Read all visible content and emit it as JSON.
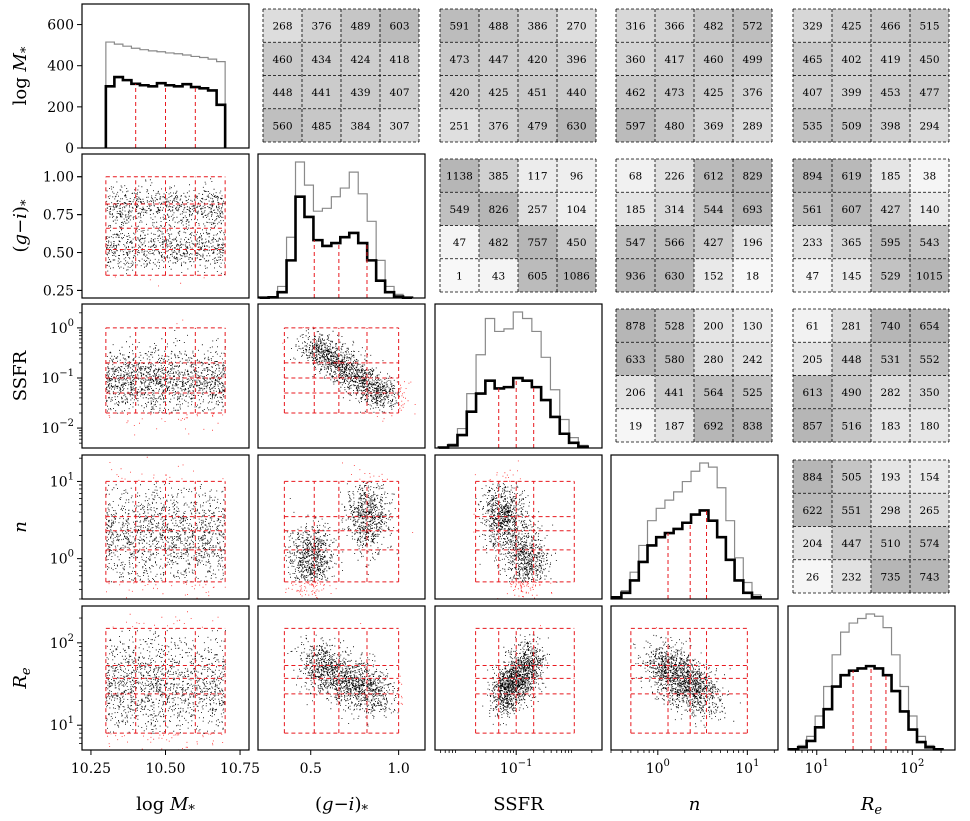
{
  "chart_data": {
    "type": "corner-plot",
    "variables": [
      {
        "label": "log M*",
        "scale": "linear",
        "lim": [
          10.22,
          10.78
        ],
        "ticks": [
          10.25,
          10.5,
          10.75
        ],
        "tick_labels": [
          "10.25",
          "10.50",
          "10.75"
        ],
        "bins": [
          10.3,
          10.4,
          10.5,
          10.6,
          10.7
        ]
      },
      {
        "label": "(g−i)*",
        "scale": "linear",
        "lim": [
          0.2,
          1.15
        ],
        "ticks": [
          0.5,
          1.0
        ],
        "tick_labels": [
          "0.5",
          "1.0"
        ],
        "bins": [
          0.35,
          0.52,
          0.66,
          0.82,
          1.0
        ]
      },
      {
        "label": "SSFR",
        "scale": "log",
        "lim": [
          0.004,
          3.0
        ],
        "ticks": [
          0.1
        ],
        "tick_labels": [
          "10−1"
        ],
        "bins": [
          0.02,
          0.05,
          0.1,
          0.2,
          1.0
        ]
      },
      {
        "label": "n",
        "scale": "log",
        "lim": [
          0.3,
          22
        ],
        "ticks": [
          1,
          10
        ],
        "tick_labels": [
          "100",
          "101"
        ],
        "bins": [
          0.5,
          1.3,
          2.3,
          3.5,
          10.0
        ]
      },
      {
        "label": "Re",
        "scale": "log",
        "lim": [
          5,
          280
        ],
        "ticks": [
          10,
          100
        ],
        "tick_labels": [
          "101",
          "102"
        ],
        "bins": [
          8,
          24,
          37,
          53,
          150
        ]
      }
    ],
    "row_axes": [
      {
        "ylabel": "log M*",
        "scale": "linear",
        "ylim": [
          0,
          700
        ],
        "ticks": [
          0,
          200,
          400,
          600
        ],
        "tick_labels": [
          "0",
          "200",
          "400",
          "600"
        ]
      },
      {
        "ylabel": "(g−i)*",
        "scale": "linear",
        "ylim": [
          0.2,
          1.15
        ],
        "ticks": [
          0.25,
          0.5,
          0.75,
          1.0
        ],
        "tick_labels": [
          "0.25",
          "0.50",
          "0.75",
          "1.00"
        ]
      },
      {
        "ylabel": "SSFR",
        "scale": "log",
        "ylim": [
          0.004,
          3.0
        ],
        "ticks": [
          0.01,
          0.1,
          1
        ],
        "tick_labels": [
          "10−2",
          "10−1",
          "100"
        ]
      },
      {
        "ylabel": "n",
        "scale": "log",
        "ylim": [
          0.3,
          22
        ],
        "ticks": [
          1,
          10
        ],
        "tick_labels": [
          "100",
          "101"
        ]
      },
      {
        "ylabel": "Re",
        "scale": "log",
        "ylim": [
          5,
          280
        ],
        "ticks": [
          10,
          100
        ],
        "tick_labels": [
          "101",
          "102"
        ]
      }
    ],
    "histograms": [
      {
        "variable": "log M*",
        "all": [
          515,
          505,
          495,
          485,
          478,
          472,
          468,
          462,
          458,
          452,
          445,
          440,
          432,
          420
        ],
        "selected": [
          300,
          345,
          330,
          312,
          305,
          300,
          315,
          305,
          300,
          310,
          296,
          290,
          280,
          210
        ]
      },
      {
        "variable": "(g−i)*",
        "all": [
          3,
          10,
          80,
          420,
          940,
          780,
          600,
          620,
          700,
          760,
          870,
          720,
          530,
          260,
          80,
          25,
          5
        ],
        "selected": [
          2,
          5,
          40,
          260,
          700,
          560,
          400,
          360,
          380,
          420,
          450,
          380,
          260,
          120,
          40,
          10,
          2
        ]
      },
      {
        "variable": "SSFR",
        "all": [
          5,
          30,
          150,
          420,
          720,
          1000,
          900,
          920,
          1050,
          1000,
          900,
          700,
          450,
          220,
          80,
          20
        ],
        "selected": [
          3,
          20,
          100,
          280,
          420,
          520,
          460,
          470,
          540,
          520,
          470,
          370,
          240,
          110,
          40,
          10
        ]
      },
      {
        "variable": "n",
        "all": [
          10,
          40,
          130,
          260,
          380,
          440,
          480,
          520,
          570,
          620,
          660,
          640,
          540,
          380,
          200,
          80,
          20
        ],
        "selected": [
          8,
          30,
          90,
          180,
          260,
          300,
          320,
          340,
          370,
          410,
          430,
          380,
          300,
          190,
          90,
          30,
          8
        ]
      },
      {
        "variable": "Re",
        "all": [
          5,
          20,
          60,
          150,
          280,
          420,
          520,
          560,
          580,
          600,
          590,
          540,
          420,
          280,
          150,
          60,
          20,
          5
        ],
        "selected": [
          3,
          12,
          40,
          100,
          180,
          280,
          330,
          350,
          360,
          370,
          360,
          330,
          260,
          170,
          90,
          35,
          12,
          3
        ]
      }
    ],
    "grid_counts": [
      {
        "row_variable": "log M*",
        "col_variable": "(g−i)*",
        "counts": [
          [
            268,
            376,
            489,
            603
          ],
          [
            460,
            434,
            424,
            418
          ],
          [
            448,
            441,
            439,
            407
          ],
          [
            560,
            485,
            384,
            307
          ]
        ]
      },
      {
        "row_variable": "log M*",
        "col_variable": "SSFR",
        "counts": [
          [
            591,
            488,
            386,
            270
          ],
          [
            473,
            447,
            420,
            396
          ],
          [
            420,
            425,
            451,
            440
          ],
          [
            251,
            376,
            479,
            630
          ]
        ]
      },
      {
        "row_variable": "log M*",
        "col_variable": "n",
        "counts": [
          [
            316,
            366,
            482,
            572
          ],
          [
            360,
            417,
            460,
            499
          ],
          [
            462,
            473,
            425,
            376
          ],
          [
            597,
            480,
            369,
            289
          ]
        ]
      },
      {
        "row_variable": "log M*",
        "col_variable": "Re",
        "counts": [
          [
            329,
            425,
            466,
            515
          ],
          [
            465,
            402,
            419,
            450
          ],
          [
            407,
            399,
            453,
            477
          ],
          [
            535,
            509,
            398,
            294
          ]
        ]
      },
      {
        "row_variable": "(g−i)*",
        "col_variable": "SSFR",
        "counts": [
          [
            1138,
            385,
            117,
            96
          ],
          [
            549,
            826,
            257,
            104
          ],
          [
            47,
            482,
            757,
            450
          ],
          [
            1,
            43,
            605,
            1086
          ]
        ]
      },
      {
        "row_variable": "(g−i)*",
        "col_variable": "n",
        "counts": [
          [
            68,
            226,
            612,
            829
          ],
          [
            185,
            314,
            544,
            693
          ],
          [
            547,
            566,
            427,
            196
          ],
          [
            936,
            630,
            152,
            18
          ]
        ]
      },
      {
        "row_variable": "(g−i)*",
        "col_variable": "Re",
        "counts": [
          [
            894,
            619,
            185,
            38
          ],
          [
            561,
            607,
            427,
            140
          ],
          [
            233,
            365,
            595,
            543
          ],
          [
            47,
            145,
            529,
            1015
          ]
        ]
      },
      {
        "row_variable": "SSFR",
        "col_variable": "n",
        "counts": [
          [
            878,
            528,
            200,
            130
          ],
          [
            633,
            580,
            280,
            242
          ],
          [
            206,
            441,
            564,
            525
          ],
          [
            19,
            187,
            692,
            838
          ]
        ]
      },
      {
        "row_variable": "SSFR",
        "col_variable": "Re",
        "counts": [
          [
            61,
            281,
            740,
            654
          ],
          [
            205,
            448,
            531,
            552
          ],
          [
            613,
            490,
            282,
            350
          ],
          [
            857,
            516,
            183,
            180
          ]
        ]
      },
      {
        "row_variable": "n",
        "col_variable": "Re",
        "counts": [
          [
            884,
            505,
            193,
            154
          ],
          [
            622,
            551,
            298,
            265
          ],
          [
            204,
            447,
            510,
            574
          ],
          [
            26,
            232,
            735,
            743
          ]
        ]
      }
    ],
    "scatter_trends": [
      {
        "x": "log M*",
        "y": "(g−i)*",
        "shape": "two horizontal bands",
        "modes": [
          0.52,
          0.8
        ]
      },
      {
        "x": "log M*",
        "y": "SSFR",
        "shape": "flat broad band",
        "center": 0.09
      },
      {
        "x": "(g−i)*",
        "y": "SSFR",
        "shape": "anti-correlated diagonal",
        "from": [
          0.5,
          0.5
        ],
        "to": [
          0.95,
          0.035
        ]
      },
      {
        "x": "log M*",
        "y": "n",
        "shape": "flat broad band",
        "center": 2.0
      },
      {
        "x": "(g−i)*",
        "y": "n",
        "shape": "two clumps",
        "clumps": [
          [
            0.5,
            1.0
          ],
          [
            0.82,
            3.5
          ]
        ]
      },
      {
        "x": "SSFR",
        "y": "n",
        "shape": "two clumps",
        "clumps": [
          [
            0.06,
            3.5
          ],
          [
            0.15,
            1.0
          ]
        ]
      },
      {
        "x": "log M*",
        "y": "Re",
        "shape": "flat broad band",
        "center": 30
      },
      {
        "x": "(g−i)*",
        "y": "Re",
        "shape": "anti-correlated",
        "from": [
          0.5,
          60
        ],
        "to": [
          0.9,
          22
        ]
      },
      {
        "x": "SSFR",
        "y": "Re",
        "shape": "positive",
        "from": [
          0.05,
          22
        ],
        "to": [
          0.2,
          60
        ]
      },
      {
        "x": "n",
        "y": "Re",
        "shape": "anti-correlated",
        "from": [
          1,
          60
        ],
        "to": [
          3.5,
          22
        ]
      }
    ],
    "colors": {
      "all": "#8a8a8a",
      "selected": "#000000",
      "bins": "#e8191f",
      "points": "#000000",
      "outliers": "#ff3030",
      "count_shade": "#7a7a7a"
    }
  }
}
